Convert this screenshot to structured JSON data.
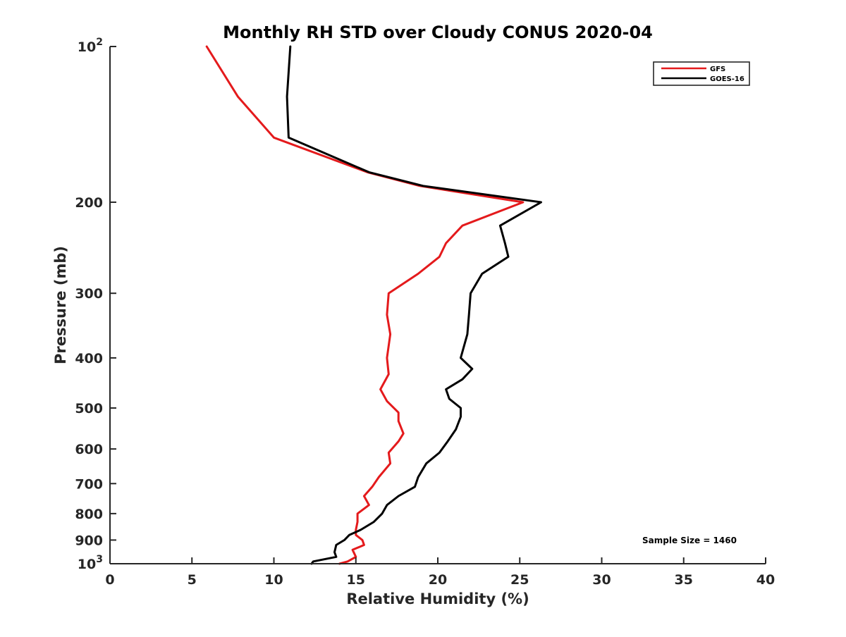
{
  "chart_data": {
    "type": "line",
    "title": "Monthly RH STD over Cloudy CONUS  2020-04",
    "xlabel": "Relative Humidity (%)",
    "ylabel": "Pressure (mb)",
    "xlim": [
      0,
      40
    ],
    "ylim": [
      100,
      1000
    ],
    "y_scale": "log",
    "y_reversed": true,
    "x_ticks": [
      {
        "value": 0,
        "label": "0"
      },
      {
        "value": 5,
        "label": "5"
      },
      {
        "value": 10,
        "label": "10"
      },
      {
        "value": 15,
        "label": "15"
      },
      {
        "value": 20,
        "label": "20"
      },
      {
        "value": 25,
        "label": "25"
      },
      {
        "value": 30,
        "label": "30"
      },
      {
        "value": 35,
        "label": "35"
      },
      {
        "value": 40,
        "label": "40"
      }
    ],
    "y_ticks": [
      {
        "value": 100,
        "label": "10",
        "sup": "2"
      },
      {
        "value": 200,
        "label": "200",
        "sup": ""
      },
      {
        "value": 300,
        "label": "300",
        "sup": ""
      },
      {
        "value": 400,
        "label": "400",
        "sup": ""
      },
      {
        "value": 500,
        "label": "500",
        "sup": ""
      },
      {
        "value": 600,
        "label": "600",
        "sup": ""
      },
      {
        "value": 700,
        "label": "700",
        "sup": ""
      },
      {
        "value": 800,
        "label": "800",
        "sup": ""
      },
      {
        "value": 900,
        "label": "900",
        "sup": ""
      },
      {
        "value": 1000,
        "label": "10",
        "sup": "3"
      }
    ],
    "grid": false,
    "legend_position": "top-right",
    "annotation": "Sample Size = 1460",
    "series": [
      {
        "name": "GFS",
        "color": "#e41a1c",
        "points": [
          [
            5.9,
            100
          ],
          [
            7.8,
            125
          ],
          [
            10.0,
            150
          ],
          [
            15.7,
            175
          ],
          [
            18.9,
            186
          ],
          [
            25.2,
            200
          ],
          [
            21.5,
            222
          ],
          [
            20.5,
            240
          ],
          [
            20.1,
            255
          ],
          [
            18.8,
            275
          ],
          [
            17.0,
            300
          ],
          [
            16.9,
            330
          ],
          [
            17.1,
            360
          ],
          [
            16.9,
            400
          ],
          [
            17.0,
            430
          ],
          [
            16.5,
            460
          ],
          [
            16.9,
            485
          ],
          [
            17.6,
            510
          ],
          [
            17.6,
            530
          ],
          [
            17.9,
            560
          ],
          [
            17.6,
            580
          ],
          [
            17.0,
            610
          ],
          [
            17.1,
            640
          ],
          [
            16.4,
            680
          ],
          [
            16.0,
            710
          ],
          [
            15.5,
            740
          ],
          [
            15.8,
            770
          ],
          [
            15.1,
            800
          ],
          [
            15.1,
            830
          ],
          [
            15.0,
            860
          ],
          [
            15.0,
            880
          ],
          [
            15.4,
            900
          ],
          [
            15.5,
            920
          ],
          [
            14.8,
            940
          ],
          [
            15.0,
            970
          ],
          [
            14.5,
            990
          ],
          [
            14.0,
            1000
          ]
        ]
      },
      {
        "name": "GOES-16",
        "color": "#000000",
        "points": [
          [
            11.0,
            100
          ],
          [
            10.8,
            125
          ],
          [
            10.9,
            150
          ],
          [
            15.8,
            175
          ],
          [
            19.1,
            186
          ],
          [
            26.3,
            200
          ],
          [
            23.8,
            222
          ],
          [
            24.1,
            240
          ],
          [
            24.3,
            255
          ],
          [
            22.7,
            275
          ],
          [
            22.0,
            300
          ],
          [
            21.9,
            330
          ],
          [
            21.8,
            360
          ],
          [
            21.4,
            400
          ],
          [
            22.1,
            420
          ],
          [
            21.5,
            440
          ],
          [
            20.5,
            460
          ],
          [
            20.7,
            480
          ],
          [
            21.4,
            500
          ],
          [
            21.4,
            520
          ],
          [
            21.1,
            550
          ],
          [
            20.6,
            580
          ],
          [
            20.1,
            610
          ],
          [
            19.3,
            640
          ],
          [
            18.8,
            680
          ],
          [
            18.6,
            710
          ],
          [
            17.6,
            740
          ],
          [
            16.9,
            770
          ],
          [
            16.6,
            800
          ],
          [
            16.1,
            830
          ],
          [
            15.3,
            860
          ],
          [
            14.6,
            880
          ],
          [
            14.3,
            900
          ],
          [
            13.8,
            920
          ],
          [
            13.7,
            950
          ],
          [
            13.8,
            970
          ],
          [
            12.4,
            990
          ],
          [
            12.3,
            1000
          ]
        ]
      }
    ]
  }
}
